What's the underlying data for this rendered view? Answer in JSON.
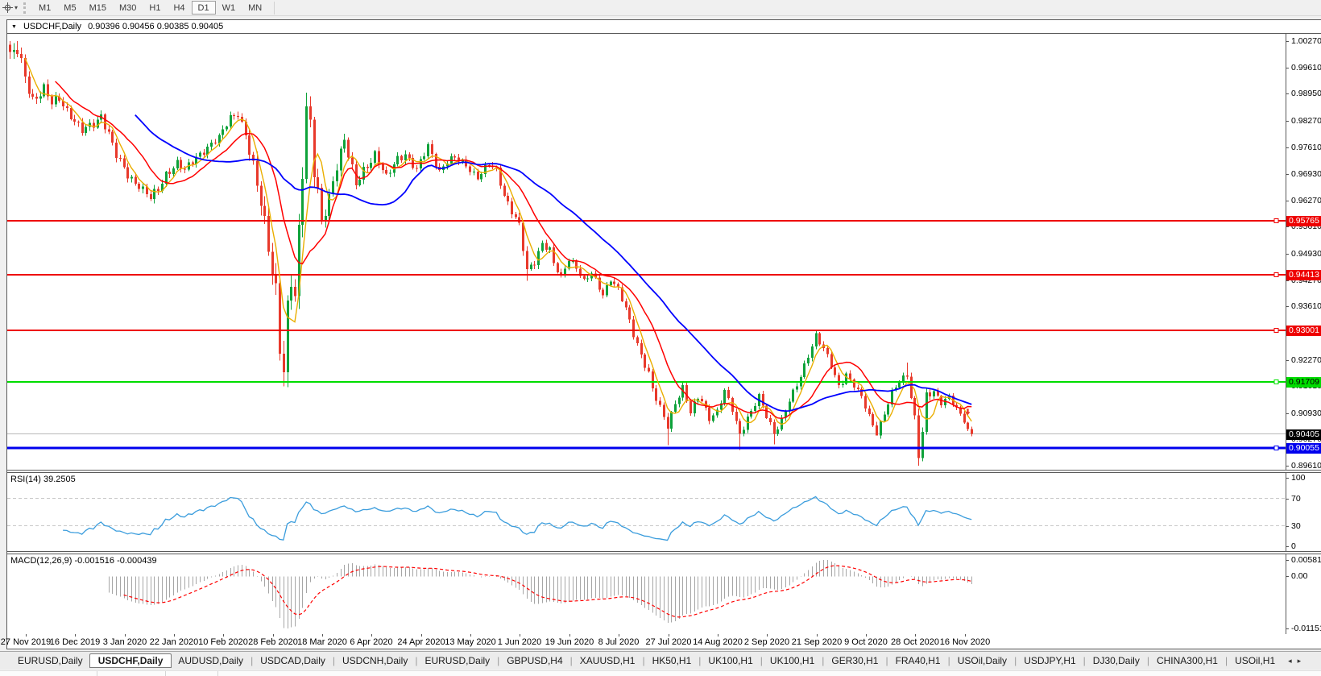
{
  "toolbar": {
    "dropdown_caret": "▾",
    "timeframes": [
      "M1",
      "M5",
      "M15",
      "M30",
      "H1",
      "H4",
      "D1",
      "W1",
      "MN"
    ],
    "active_timeframe": "D1"
  },
  "chart_header": {
    "collapse_caret": "▼",
    "symbol_label": "USDCHF,Daily",
    "ohlc_values": "0.90396 0.90456 0.90385 0.90405"
  },
  "chart_data": {
    "type": "candlestick",
    "symbol": "USDCHF",
    "period": "Daily",
    "open": "0.90396",
    "high": "0.90456",
    "low": "0.90385",
    "close": "0.90405",
    "candle_up_color": "#0ea23a",
    "candle_down_color": "#e8392b",
    "price_axis": {
      "ylim": [
        0.89509,
        1.00452
      ],
      "ticks": [
        {
          "label": "1.00270",
          "price": 1.0027
        },
        {
          "label": "0.99610",
          "price": 0.9961
        },
        {
          "label": "0.98950",
          "price": 0.9895
        },
        {
          "label": "0.98270",
          "price": 0.9827
        },
        {
          "label": "0.97610",
          "price": 0.9761
        },
        {
          "label": "0.96930",
          "price": 0.9693
        },
        {
          "label": "0.96270",
          "price": 0.9627
        },
        {
          "label": "0.95610",
          "price": 0.9561
        },
        {
          "label": "0.94930",
          "price": 0.9493
        },
        {
          "label": "0.94270",
          "price": 0.9427
        },
        {
          "label": "0.93610",
          "price": 0.9361
        },
        {
          "label": "0.92950",
          "price": 0.9295
        },
        {
          "label": "0.92270",
          "price": 0.9227
        },
        {
          "label": "0.91610",
          "price": 0.9161
        },
        {
          "label": "0.90930",
          "price": 0.9093
        },
        {
          "label": "0.90270",
          "price": 0.9027
        },
        {
          "label": "0.89610",
          "price": 0.8961
        }
      ]
    },
    "horizontal_lines": [
      {
        "label": "0.95765",
        "price": 0.95765,
        "color": "#ee0000",
        "badge_bg": "#ee0000",
        "badge_fg": "#ffffff",
        "width": 2
      },
      {
        "label": "0.94413",
        "price": 0.94413,
        "color": "#ee0000",
        "badge_bg": "#ee0000",
        "badge_fg": "#ffffff",
        "width": 2
      },
      {
        "label": "0.93001",
        "price": 0.93001,
        "color": "#ee0000",
        "badge_bg": "#ee0000",
        "badge_fg": "#ffffff",
        "width": 2
      },
      {
        "label": "0.91709",
        "price": 0.91709,
        "color": "#00dd00",
        "badge_bg": "#00dd00",
        "badge_fg": "#000000",
        "width": 2
      },
      {
        "label": "0.90055",
        "price": 0.90055,
        "color": "#0000ee",
        "badge_bg": "#0000ee",
        "badge_fg": "#ffffff",
        "width": 3
      }
    ],
    "current_price": {
      "label": "0.90405",
      "price": 0.90405,
      "line_color": "#b8b8b8",
      "badge_bg": "#000000",
      "badge_fg": "#ffffff"
    },
    "moving_averages": [
      {
        "name": "ma-fast",
        "period": 5,
        "color": "#eaae00",
        "width": 1.4
      },
      {
        "name": "ma-mid",
        "period": 13,
        "color": "#ff0000",
        "width": 1.5
      },
      {
        "name": "ma-slow",
        "period": 34,
        "color": "#0000ff",
        "width": 1.8
      }
    ],
    "sell_arrow": {
      "bar": 252,
      "price": 0.9088,
      "color": "#e8392b"
    },
    "bars_total": 254,
    "anchors": [
      [
        0,
        0.999,
        0.0028
      ],
      [
        2,
        1.0,
        0.0026
      ],
      [
        4,
        0.9935,
        0.0024
      ],
      [
        6,
        0.9882,
        0.0022
      ],
      [
        9,
        0.9908,
        0.0018
      ],
      [
        11,
        0.9868,
        0.0018
      ],
      [
        13,
        0.9882,
        0.0016
      ],
      [
        16,
        0.9842,
        0.0016
      ],
      [
        19,
        0.98,
        0.0016
      ],
      [
        22,
        0.9818,
        0.0016
      ],
      [
        24,
        0.9842,
        0.0016
      ],
      [
        26,
        0.9796,
        0.0016
      ],
      [
        28,
        0.9738,
        0.0016
      ],
      [
        31,
        0.969,
        0.0016
      ],
      [
        34,
        0.9666,
        0.0015
      ],
      [
        37,
        0.9632,
        0.0018
      ],
      [
        39,
        0.9652,
        0.0016
      ],
      [
        41,
        0.9694,
        0.0015
      ],
      [
        44,
        0.9722,
        0.0014
      ],
      [
        46,
        0.97,
        0.0014
      ],
      [
        49,
        0.9736,
        0.0014
      ],
      [
        52,
        0.9762,
        0.0014
      ],
      [
        55,
        0.9782,
        0.0014
      ],
      [
        58,
        0.9836,
        0.0014
      ],
      [
        60,
        0.9848,
        0.0014
      ],
      [
        62,
        0.9792,
        0.0018
      ],
      [
        64,
        0.9702,
        0.003
      ],
      [
        66,
        0.9622,
        0.0036
      ],
      [
        68,
        0.9522,
        0.004
      ],
      [
        70,
        0.9402,
        0.0046
      ],
      [
        71,
        0.9262,
        0.0055
      ],
      [
        72,
        0.9188,
        0.0048
      ],
      [
        73,
        0.9332,
        0.0055
      ],
      [
        74,
        0.9422,
        0.0048
      ],
      [
        75,
        0.9382,
        0.0046
      ],
      [
        76,
        0.9552,
        0.005
      ],
      [
        77,
        0.9722,
        0.005
      ],
      [
        78,
        0.9868,
        0.0042
      ],
      [
        79,
        0.9822,
        0.0038
      ],
      [
        80,
        0.9702,
        0.0036
      ],
      [
        81,
        0.9642,
        0.0032
      ],
      [
        82,
        0.9562,
        0.0028
      ],
      [
        84,
        0.9632,
        0.0026
      ],
      [
        86,
        0.9722,
        0.0024
      ],
      [
        88,
        0.9782,
        0.0022
      ],
      [
        90,
        0.9702,
        0.002
      ],
      [
        91,
        0.9662,
        0.0018
      ],
      [
        93,
        0.9702,
        0.0018
      ],
      [
        96,
        0.9746,
        0.0016
      ],
      [
        99,
        0.9682,
        0.0016
      ],
      [
        102,
        0.9732,
        0.0015
      ],
      [
        104,
        0.9746,
        0.0015
      ],
      [
        107,
        0.9702,
        0.0015
      ],
      [
        110,
        0.9762,
        0.0014
      ],
      [
        113,
        0.9702,
        0.0014
      ],
      [
        115,
        0.9726,
        0.0013
      ],
      [
        117,
        0.9732,
        0.0013
      ],
      [
        120,
        0.9716,
        0.0013
      ],
      [
        123,
        0.9686,
        0.0013
      ],
      [
        126,
        0.9716,
        0.0013
      ],
      [
        128,
        0.9702,
        0.0013
      ],
      [
        130,
        0.9642,
        0.0015
      ],
      [
        132,
        0.9602,
        0.0015
      ],
      [
        134,
        0.9562,
        0.0016
      ],
      [
        136,
        0.9446,
        0.0018
      ],
      [
        138,
        0.9476,
        0.0016
      ],
      [
        140,
        0.9522,
        0.0014
      ],
      [
        142,
        0.9502,
        0.0013
      ],
      [
        143,
        0.9466,
        0.0013
      ],
      [
        145,
        0.9432,
        0.0013
      ],
      [
        147,
        0.9482,
        0.0013
      ],
      [
        149,
        0.9462,
        0.0012
      ],
      [
        151,
        0.9422,
        0.0012
      ],
      [
        153,
        0.9442,
        0.0012
      ],
      [
        156,
        0.9392,
        0.0012
      ],
      [
        158,
        0.9432,
        0.0012
      ],
      [
        160,
        0.9402,
        0.0012
      ],
      [
        162,
        0.9352,
        0.0013
      ],
      [
        164,
        0.9292,
        0.0014
      ],
      [
        166,
        0.9242,
        0.0014
      ],
      [
        168,
        0.9192,
        0.0014
      ],
      [
        169,
        0.9152,
        0.0014
      ],
      [
        171,
        0.9102,
        0.0016
      ],
      [
        173,
        0.9062,
        0.0016
      ],
      [
        175,
        0.9122,
        0.0014
      ],
      [
        177,
        0.9156,
        0.0013
      ],
      [
        179,
        0.9092,
        0.0013
      ],
      [
        181,
        0.9132,
        0.0012
      ],
      [
        182,
        0.9126,
        0.0012
      ],
      [
        184,
        0.9082,
        0.0012
      ],
      [
        186,
        0.9096,
        0.0012
      ],
      [
        188,
        0.9146,
        0.0012
      ],
      [
        190,
        0.9102,
        0.0012
      ],
      [
        192,
        0.9042,
        0.0014
      ],
      [
        194,
        0.9082,
        0.0012
      ],
      [
        195,
        0.9096,
        0.0012
      ],
      [
        197,
        0.9132,
        0.0012
      ],
      [
        199,
        0.9086,
        0.0012
      ],
      [
        201,
        0.9046,
        0.0014
      ],
      [
        203,
        0.9076,
        0.0012
      ],
      [
        205,
        0.9122,
        0.0012
      ],
      [
        207,
        0.9162,
        0.0012
      ],
      [
        208,
        0.9186,
        0.0012
      ],
      [
        210,
        0.9242,
        0.0014
      ],
      [
        212,
        0.9288,
        0.0014
      ],
      [
        214,
        0.9252,
        0.0013
      ],
      [
        216,
        0.9212,
        0.0012
      ],
      [
        218,
        0.9162,
        0.0012
      ],
      [
        220,
        0.9192,
        0.0012
      ],
      [
        221,
        0.9176,
        0.0011
      ],
      [
        223,
        0.9146,
        0.0011
      ],
      [
        224,
        0.9132,
        0.0011
      ],
      [
        226,
        0.9086,
        0.0012
      ],
      [
        228,
        0.9046,
        0.0013
      ],
      [
        230,
        0.9092,
        0.0012
      ],
      [
        232,
        0.9142,
        0.0011
      ],
      [
        234,
        0.9172,
        0.0011
      ],
      [
        236,
        0.9192,
        0.0012
      ],
      [
        238,
        0.9082,
        0.0018
      ],
      [
        239,
        0.8992,
        0.0026
      ],
      [
        240,
        0.9042,
        0.0022
      ],
      [
        241,
        0.9132,
        0.0018
      ],
      [
        243,
        0.9146,
        0.0012
      ],
      [
        245,
        0.9122,
        0.0011
      ],
      [
        247,
        0.9136,
        0.0011
      ],
      [
        249,
        0.9102,
        0.001
      ],
      [
        251,
        0.9072,
        0.001
      ],
      [
        252,
        0.9049,
        0.0009
      ],
      [
        253,
        0.90405,
        0.0009
      ]
    ],
    "forced_extremes": [
      {
        "bar": 2,
        "high": 1.0027
      },
      {
        "bar": 60,
        "high": 0.985
      },
      {
        "bar": 72,
        "low": 0.916
      },
      {
        "bar": 78,
        "high": 0.9898
      },
      {
        "bar": 136,
        "low": 0.9425
      },
      {
        "bar": 173,
        "low": 0.9013
      },
      {
        "bar": 192,
        "low": 0.9
      },
      {
        "bar": 201,
        "low": 0.9015
      },
      {
        "bar": 228,
        "low": 0.904
      },
      {
        "bar": 236,
        "high": 0.922
      },
      {
        "bar": 239,
        "low": 0.8961
      }
    ],
    "date_labels": [
      "27 Nov 2019",
      "16 Dec 2019",
      "3 Jan 2020",
      "22 Jan 2020",
      "10 Feb 2020",
      "28 Feb 2020",
      "18 Mar 2020",
      "6 Apr 2020",
      "24 Apr 2020",
      "13 May 2020",
      "1 Jun 2020",
      "19 Jun 2020",
      "8 Jul 2020",
      "27 Jul 2020",
      "14 Aug 2020",
      "2 Sep 2020",
      "21 Sep 2020",
      "9 Oct 2020",
      "28 Oct 2020",
      "16 Nov 2020"
    ],
    "first_label_bar": 4,
    "label_step_bars": 13,
    "rsi": {
      "label": "RSI(14) 39.2505",
      "period": 14,
      "current": 39.2505,
      "color": "#3b9ddd",
      "level_color": "#c8c8c8",
      "top_label": "100",
      "upper_level": {
        "value": 70,
        "label": "70"
      },
      "lower_level": {
        "value": 30,
        "label": "30"
      },
      "bottom_label": "0"
    },
    "macd": {
      "label": "MACD(12,26,9) -0.001516 -0.000439",
      "fast": 12,
      "slow": 26,
      "signal_period": 9,
      "current_macd": -0.001516,
      "current_signal": -0.000439,
      "histogram_color": "#a6a6a6",
      "signal_color": "#ff0000",
      "scale_top_label": "0.005818",
      "scale_zero_label": "0.00",
      "scale_bottom_label": "-0.011514"
    }
  },
  "tab_bar": {
    "tabs": [
      "EURUSD,Daily",
      "USDCHF,Daily",
      "AUDUSD,Daily",
      "USDCAD,Daily",
      "USDCNH,Daily",
      "EURUSD,Daily",
      "GBPUSD,H4",
      "XAUUSD,H1",
      "HK50,H1",
      "UK100,H1",
      "UK100,H1",
      "GER30,H1",
      "FRA40,H1",
      "USOil,Daily",
      "USDJPY,H1",
      "DJ30,Daily",
      "CHINA300,H1",
      "USOil,H1"
    ],
    "active_index": 1,
    "scroll_left": "◂",
    "scroll_right": "▸"
  }
}
